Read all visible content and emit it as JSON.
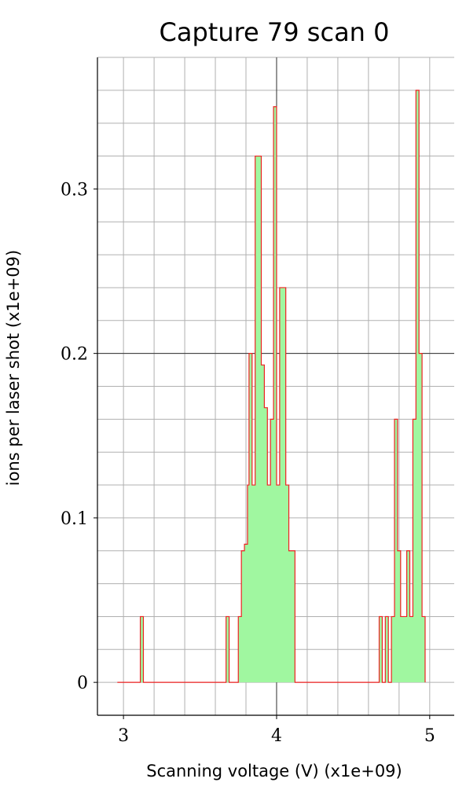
{
  "chart_data": {
    "type": "area",
    "title": "Capture 79 scan 0",
    "xlabel": "Scanning voltage (V) (x1e+09)",
    "ylabel": "ions per laser shot (x1e+09)",
    "xlim": [
      2.83,
      5.16
    ],
    "ylim": [
      -0.02,
      0.38
    ],
    "x_ticks": [
      3,
      4,
      5
    ],
    "x_tick_labels": [
      "3",
      "4",
      "5"
    ],
    "y_ticks": [
      0,
      0.1,
      0.2,
      0.3
    ],
    "y_tick_labels": [
      "0",
      "0.1",
      "0.2",
      "0.3"
    ],
    "x_minor_step": 0.2,
    "y_minor_step": 0.02,
    "grid": true,
    "style": "step histogram",
    "colors": {
      "fill": "#a0f7a0",
      "line": "#ee2222",
      "grid": "#b0b0b0",
      "major_line": "#333333"
    },
    "series": [
      {
        "points": [
          [
            2.96,
            0
          ],
          [
            3.11,
            0
          ],
          [
            3.11,
            0.04
          ],
          [
            3.13,
            0.04
          ],
          [
            3.13,
            0
          ],
          [
            3.67,
            0
          ],
          [
            3.67,
            0.04
          ],
          [
            3.69,
            0.04
          ],
          [
            3.69,
            0
          ],
          [
            3.75,
            0
          ],
          [
            3.75,
            0.04
          ],
          [
            3.77,
            0.04
          ],
          [
            3.77,
            0.08
          ],
          [
            3.79,
            0.08
          ],
          [
            3.79,
            0.084
          ],
          [
            3.81,
            0.084
          ],
          [
            3.81,
            0.12
          ],
          [
            3.82,
            0.12
          ],
          [
            3.82,
            0.2
          ],
          [
            3.84,
            0.2
          ],
          [
            3.84,
            0.12
          ],
          [
            3.86,
            0.12
          ],
          [
            3.86,
            0.32
          ],
          [
            3.9,
            0.32
          ],
          [
            3.9,
            0.193
          ],
          [
            3.92,
            0.193
          ],
          [
            3.92,
            0.167
          ],
          [
            3.94,
            0.167
          ],
          [
            3.94,
            0.12
          ],
          [
            3.96,
            0.12
          ],
          [
            3.96,
            0.16
          ],
          [
            3.98,
            0.16
          ],
          [
            3.98,
            0.35
          ],
          [
            4.0,
            0.35
          ],
          [
            4.0,
            0.12
          ],
          [
            4.02,
            0.12
          ],
          [
            4.02,
            0.24
          ],
          [
            4.06,
            0.24
          ],
          [
            4.06,
            0.12
          ],
          [
            4.08,
            0.12
          ],
          [
            4.08,
            0.08
          ],
          [
            4.12,
            0.08
          ],
          [
            4.12,
            0
          ],
          [
            4.67,
            0
          ],
          [
            4.67,
            0.04
          ],
          [
            4.69,
            0.04
          ],
          [
            4.69,
            0
          ],
          [
            4.71,
            0
          ],
          [
            4.71,
            0.04
          ],
          [
            4.73,
            0.04
          ],
          [
            4.73,
            0
          ],
          [
            4.75,
            0
          ],
          [
            4.75,
            0.04
          ],
          [
            4.77,
            0.04
          ],
          [
            4.77,
            0.16
          ],
          [
            4.79,
            0.16
          ],
          [
            4.79,
            0.08
          ],
          [
            4.81,
            0.08
          ],
          [
            4.81,
            0.04
          ],
          [
            4.85,
            0.04
          ],
          [
            4.85,
            0.08
          ],
          [
            4.87,
            0.08
          ],
          [
            4.87,
            0.04
          ],
          [
            4.89,
            0.04
          ],
          [
            4.89,
            0.16
          ],
          [
            4.91,
            0.16
          ],
          [
            4.91,
            0.36
          ],
          [
            4.93,
            0.36
          ],
          [
            4.93,
            0.2
          ],
          [
            4.95,
            0.2
          ],
          [
            4.95,
            0.04
          ],
          [
            4.97,
            0.04
          ],
          [
            4.97,
            0
          ]
        ]
      }
    ]
  }
}
